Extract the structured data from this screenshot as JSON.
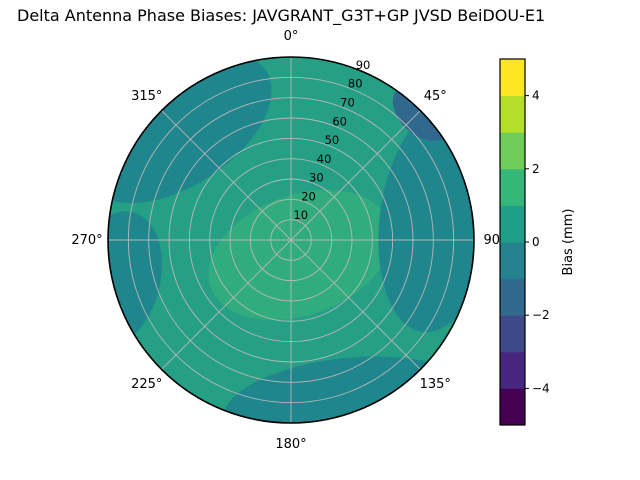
{
  "title": "Delta Antenna Phase Biases: JAVGRANT_G3T+GP JVSD BeiDOU-E1",
  "polar_axis": {
    "azimuth_labels": [
      "0°",
      "45°",
      "90°",
      "135°",
      "180°",
      "225°",
      "270°",
      "315°"
    ],
    "radial_labels": [
      "10",
      "20",
      "30",
      "40",
      "50",
      "60",
      "70",
      "80",
      "90"
    ]
  },
  "colorbar": {
    "label": "Bias (mm)",
    "tick_labels": [
      "−4",
      "−2",
      "0",
      "2",
      "4"
    ],
    "tick_values": [
      -4,
      -2,
      0,
      2,
      4
    ],
    "range": [
      -5,
      5
    ],
    "colors": [
      "#440154",
      "#46267e",
      "#3d4989",
      "#31688e",
      "#26828e",
      "#1f9e89",
      "#35b779",
      "#6ece58",
      "#b5de2b",
      "#fde725"
    ]
  },
  "plot_colors": {
    "base": "#26a085",
    "band_pos1": "#31ac7e",
    "band_neg1": "#1f868d",
    "band_neg2": "#31688e",
    "grid": "#b7b7b7",
    "outline": "#000000"
  },
  "chart_data": {
    "type": "heatmap",
    "projection": "polar",
    "title": "Delta Antenna Phase Biases: JAVGRANT_G3T+GP JVSD BeiDOU-E1",
    "azimuth_deg": [
      0,
      45,
      90,
      135,
      180,
      225,
      270,
      315
    ],
    "radial_ticks_deg": [
      10,
      20,
      30,
      40,
      50,
      60,
      70,
      80,
      90
    ],
    "colorbar": {
      "label": "Bias (mm)",
      "ticks": [
        -4,
        -2,
        0,
        2,
        4
      ],
      "range": [
        -5,
        5
      ],
      "colormap": "viridis"
    },
    "contour_levels_mm": [
      -5,
      -4,
      -3,
      -2,
      -1,
      0,
      1,
      2,
      3,
      4,
      5
    ],
    "estimated_regions": [
      {
        "region": "most of disc",
        "bias_mm": 0.5
      },
      {
        "region": "central swath around zenith",
        "bias_mm": 1.5
      },
      {
        "region": "upper-left region toward 315°",
        "bias_mm": -0.5
      },
      {
        "region": "right rim 35°–130°",
        "bias_mm": -0.5
      },
      {
        "region": "small patch at 45° rim",
        "bias_mm": -1.5
      },
      {
        "region": "bottom rim 150°–200°",
        "bias_mm": -0.5
      },
      {
        "region": "left rim near 260°",
        "bias_mm": -0.5
      }
    ],
    "legend_position": "right colorbar",
    "grid": true
  }
}
